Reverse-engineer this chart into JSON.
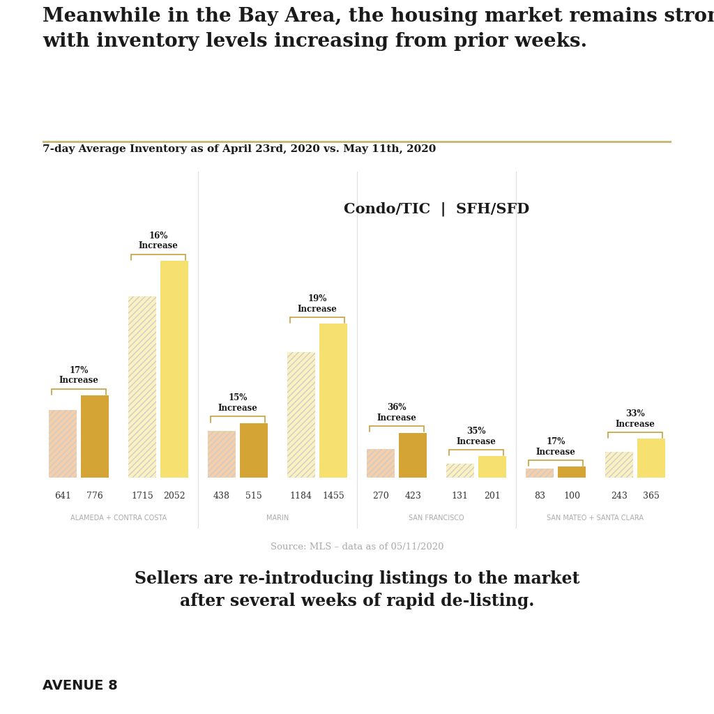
{
  "title": "Meanwhile in the Bay Area, the housing market remains strong\nwith inventory levels increasing from prior weeks.",
  "subtitle": "7-day Average Inventory as of April 23rd, 2020 vs. May 11th, 2020",
  "legend_label": "Condo/TIC  |  SFH/SFD",
  "source": "Source: MLS – data as of 05/11/2020",
  "footer": "Sellers are re-introducing listings to the market\nafter several weeks of rapid de-listing.",
  "brand": "AVENUE 8",
  "separator_color": "#C9B97A",
  "regions": [
    {
      "name": "ALAMEDA + CONTRA COSTA",
      "pairs": [
        {
          "label_old": 641,
          "label_new": 776,
          "increase": "17%\nIncrease",
          "color_old": "#F5CEAA",
          "color_new": "#D4A535"
        },
        {
          "label_old": 1715,
          "label_new": 2052,
          "increase": "16%\nIncrease",
          "color_old": "#FBF0C0",
          "color_new": "#F5E070"
        }
      ]
    },
    {
      "name": "MARIN",
      "pairs": [
        {
          "label_old": 438,
          "label_new": 515,
          "increase": "15%\nIncrease",
          "color_old": "#F5CEAA",
          "color_new": "#D4A535"
        },
        {
          "label_old": 1184,
          "label_new": 1455,
          "increase": "19%\nIncrease",
          "color_old": "#FBF0C0",
          "color_new": "#F5E070"
        }
      ]
    },
    {
      "name": "SAN FRANCISCO",
      "pairs": [
        {
          "label_old": 270,
          "label_new": 423,
          "increase": "36%\nIncrease",
          "color_old": "#F5CEAA",
          "color_new": "#D4A535"
        },
        {
          "label_old": 131,
          "label_new": 201,
          "increase": "35%\nIncrease",
          "color_old": "#FBF0C0",
          "color_new": "#F5E070"
        }
      ]
    },
    {
      "name": "SAN MATEO + SANTA CLARA",
      "pairs": [
        {
          "label_old": 83,
          "label_new": 100,
          "increase": "17%\nIncrease",
          "color_old": "#F5CEAA",
          "color_new": "#D4A535"
        },
        {
          "label_old": 243,
          "label_new": 365,
          "increase": "33%\nIncrease",
          "color_old": "#FBF0C0",
          "color_new": "#F5E070"
        }
      ]
    }
  ],
  "max_val": 2052,
  "background_color": "#FFFFFF",
  "brace_color": "#C9A84C",
  "divider_color": "#E0E0E0",
  "region_label_color": "#AAAAAA",
  "value_label_color": "#333333"
}
